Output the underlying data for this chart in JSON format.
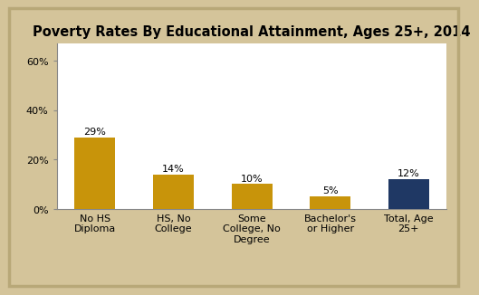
{
  "title": "Poverty Rates By Educational Attainment, Ages 25+, 2014",
  "categories": [
    "No HS\nDiploma",
    "HS, No\nCollege",
    "Some\nCollege, No\nDegree",
    "Bachelor's\nor Higher",
    "Total, Age\n25+"
  ],
  "values": [
    29,
    14,
    10,
    5,
    12
  ],
  "bar_colors": [
    "#C8940A",
    "#C8940A",
    "#C8940A",
    "#C8940A",
    "#1F3864"
  ],
  "bar_labels": [
    "29%",
    "14%",
    "10%",
    "5%",
    "12%"
  ],
  "yticks": [
    0,
    20,
    40,
    60
  ],
  "ytick_labels": [
    "0%",
    "20%",
    "40%",
    "60%"
  ],
  "ylim": [
    0,
    67
  ],
  "background_color": "#FFFFFF",
  "outer_background": "#D4C49A",
  "border_color": "#B8A878",
  "title_fontsize": 10.5,
  "tick_fontsize": 8,
  "bar_label_fontsize": 8
}
